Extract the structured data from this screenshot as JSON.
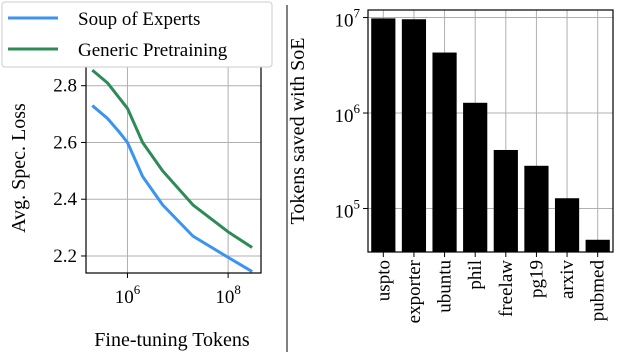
{
  "chart_data": [
    {
      "type": "line",
      "xlabel": "Fine-tuning Tokens",
      "ylabel": "Avg. Spec. Loss",
      "xscale": "log",
      "xlim": [
        150000,
        450000000
      ],
      "ylim": [
        2.14,
        2.88
      ],
      "x_ticks": [
        {
          "value": 1000000,
          "base": "10",
          "exp": "6"
        },
        {
          "value": 100000000,
          "base": "10",
          "exp": "8"
        }
      ],
      "y_ticks": [
        "2.2",
        "2.4",
        "2.6",
        "2.8"
      ],
      "grid": true,
      "legend": "top-left",
      "series": [
        {
          "name": "Soup of Experts",
          "color": "#3a94f0",
          "x": [
            200000,
            400000,
            700000,
            1000000,
            2000000,
            5000000,
            20000000,
            100000000,
            300000000
          ],
          "y": [
            2.73,
            2.685,
            2.635,
            2.6,
            2.48,
            2.38,
            2.27,
            2.195,
            2.145
          ]
        },
        {
          "name": "Generic Pretraining",
          "color": "#2e8b57",
          "x": [
            200000,
            400000,
            700000,
            1000000,
            2000000,
            5000000,
            20000000,
            100000000,
            300000000
          ],
          "y": [
            2.855,
            2.81,
            2.755,
            2.72,
            2.6,
            2.5,
            2.38,
            2.285,
            2.23
          ]
        }
      ]
    },
    {
      "type": "bar",
      "ylabel": "Tokens saved with SoE",
      "yscale": "log",
      "ylim": [
        35000,
        12000000
      ],
      "y_ticks": [
        {
          "value": 100000,
          "base": "10",
          "exp": "5"
        },
        {
          "value": 1000000,
          "base": "10",
          "exp": "6"
        },
        {
          "value": 10000000,
          "base": "10",
          "exp": "7"
        }
      ],
      "grid": true,
      "categories": [
        "uspto",
        "exporter",
        "ubuntu",
        "phil",
        "freelaw",
        "pg19",
        "arxiv",
        "pubmed"
      ],
      "values": [
        9800000,
        9600000,
        4300000,
        1280000,
        410000,
        280000,
        128000,
        47000
      ],
      "bar_color": "#000000"
    }
  ]
}
